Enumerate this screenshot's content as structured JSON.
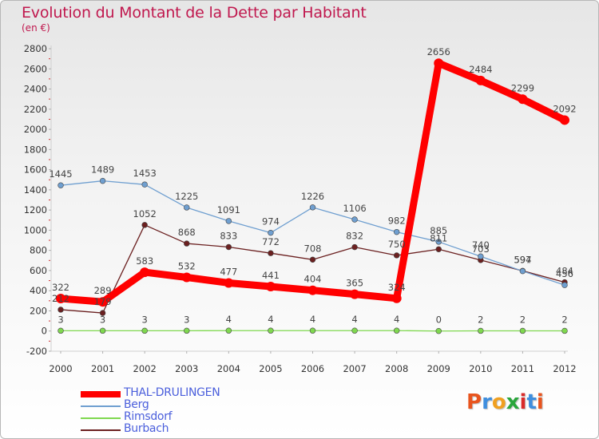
{
  "title": "Evolution du Montant de la Dette par Habitant",
  "unit": "(en €)",
  "brand": {
    "letters": [
      "P",
      "r",
      "o",
      "x",
      "i",
      "t",
      "i"
    ],
    "colors": [
      "#e8541e",
      "#3e8ede",
      "#f0a020",
      "#2aa63c",
      "#d92b2b",
      "#3e8ede",
      "#e8541e"
    ]
  },
  "chart_data": {
    "type": "line",
    "x": [
      "2000",
      "2001",
      "2002",
      "2003",
      "2004",
      "2005",
      "2006",
      "2007",
      "2008",
      "2009",
      "2010",
      "2011",
      "2012"
    ],
    "ylim": [
      -200,
      2800
    ],
    "yticks": [
      -200,
      0,
      200,
      400,
      600,
      800,
      1000,
      1200,
      1400,
      1600,
      1800,
      2000,
      2200,
      2400,
      2600,
      2800
    ],
    "grid": false,
    "legend_position": "bottom-left",
    "series": [
      {
        "name": "THAL-DRULINGEN",
        "values": [
          322,
          289,
          583,
          532,
          477,
          441,
          404,
          365,
          324,
          2656,
          2484,
          2299,
          2092
        ],
        "color": "#ff0000",
        "emphasis": true
      },
      {
        "name": "Berg",
        "values": [
          1445,
          1489,
          1453,
          1225,
          1091,
          974,
          1226,
          1106,
          982,
          885,
          740,
          594,
          456
        ],
        "color": "#6f9fd0"
      },
      {
        "name": "Rimsdorf",
        "values": [
          3,
          3,
          3,
          3,
          4,
          4,
          4,
          4,
          4,
          0,
          2,
          2,
          2
        ],
        "color": "#7fd84f"
      },
      {
        "name": "Burbach",
        "values": [
          212,
          179,
          1052,
          868,
          833,
          772,
          708,
          832,
          750,
          811,
          703,
          597,
          484
        ],
        "color": "#6b2020"
      }
    ]
  }
}
